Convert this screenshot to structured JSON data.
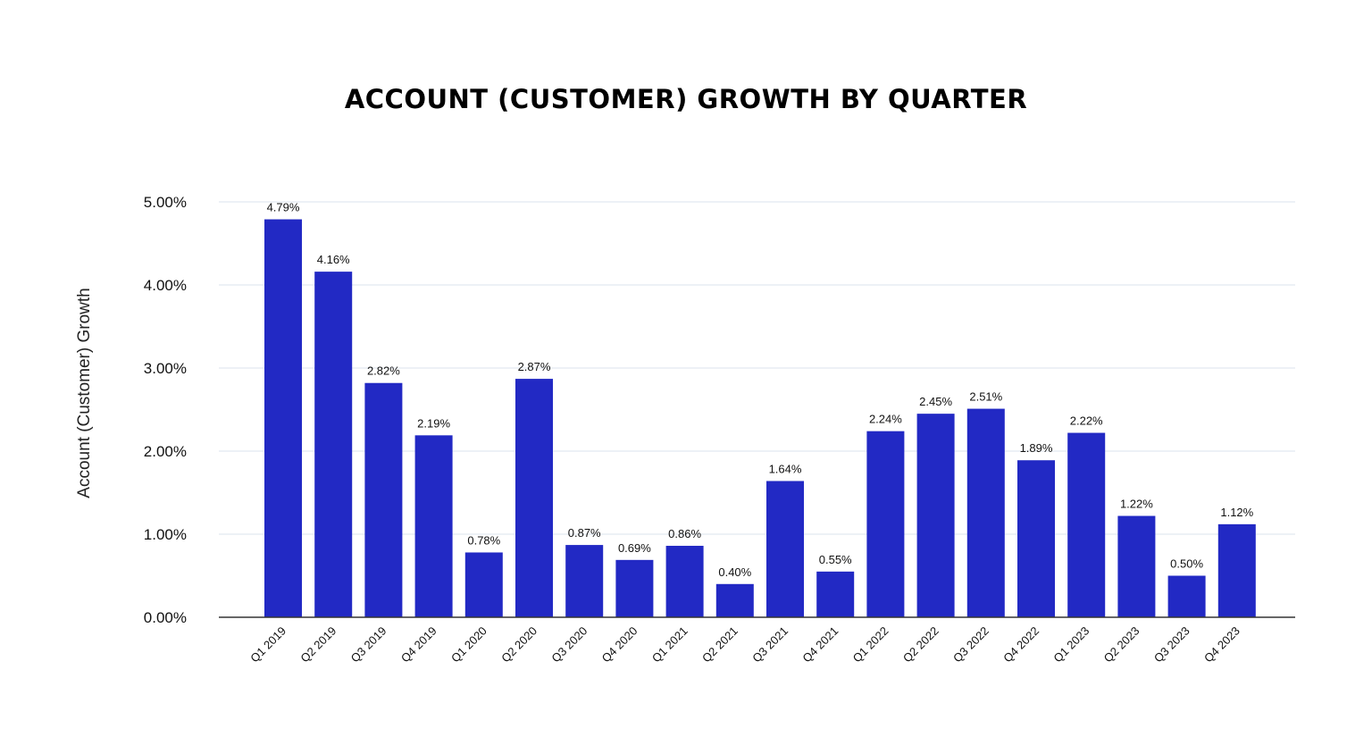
{
  "chart_data": {
    "type": "bar",
    "title": "ACCOUNT (CUSTOMER) GROWTH BY QUARTER",
    "xlabel": "",
    "ylabel": "Account (Customer) Growth",
    "ylim": [
      0,
      5
    ],
    "yticks": [
      "0.00%",
      "1.00%",
      "2.00%",
      "3.00%",
      "4.00%",
      "5.00%"
    ],
    "grid": true,
    "bar_color": "#2229C4",
    "categories": [
      "Q1 2019",
      "Q2 2019",
      "Q3 2019",
      "Q4 2019",
      "Q1 2020",
      "Q2 2020",
      "Q3 2020",
      "Q4 2020",
      "Q1 2021",
      "Q2 2021",
      "Q3 2021",
      "Q4 2021",
      "Q1 2022",
      "Q2 2022",
      "Q3 2022",
      "Q4 2022",
      "Q1 2023",
      "Q2 2023",
      "Q3 2023",
      "Q4 2023"
    ],
    "values": [
      4.79,
      4.16,
      2.82,
      2.19,
      0.78,
      2.87,
      0.87,
      0.69,
      0.86,
      0.4,
      1.64,
      0.55,
      2.24,
      2.45,
      2.51,
      1.89,
      2.22,
      1.22,
      0.5,
      1.12
    ],
    "data_labels": [
      "4.79%",
      "4.16%",
      "2.82%",
      "2.19%",
      "0.78%",
      "2.87%",
      "0.87%",
      "0.69%",
      "0.86%",
      "0.40%",
      "1.64%",
      "0.55%",
      "2.24%",
      "2.45%",
      "2.51%",
      "1.89%",
      "2.22%",
      "1.22%",
      "0.50%",
      "1.12%"
    ]
  }
}
